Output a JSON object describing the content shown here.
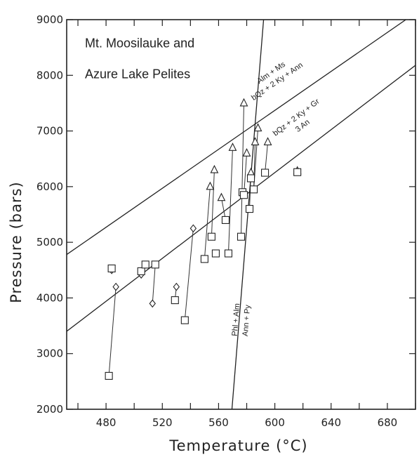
{
  "chart_data": {
    "type": "scatter",
    "title": "",
    "xlabel": "Temperature (°C)",
    "ylabel": "Pressure (bars)",
    "xlim": [
      452,
      700
    ],
    "ylim": [
      2000,
      9000
    ],
    "x_ticks": [
      480,
      520,
      560,
      600,
      640,
      680
    ],
    "y_ticks": [
      2000,
      3000,
      4000,
      5000,
      6000,
      7000,
      8000,
      9000
    ],
    "grid": false,
    "annotations": [
      {
        "text": "Mt. Moosilauke and",
        "x": 462,
        "y": 8500
      },
      {
        "text": "Azure Lake Pelites",
        "x": 462,
        "y": 7950
      }
    ],
    "reaction_lines": [
      {
        "name": "Alm + Ms = bQz + 2 Ky + Ann",
        "label_top": "Alm + Ms",
        "label_bottom": "bQz + 2 Ky + Ann",
        "x": [
          452,
          700
        ],
        "y": [
          4780,
          9120
        ],
        "label_at": {
          "x": 600,
          "y": 7950
        }
      },
      {
        "name": "bQz + 2 Ky + Gr = 3 An",
        "label_top": "bQz + 2 Ky + Gr",
        "label_bottom": "3 An",
        "x": [
          452,
          700
        ],
        "y": [
          3400,
          8180
        ],
        "label_at": {
          "x": 618,
          "y": 7150
        }
      },
      {
        "name": "Phl + Alm = Ann + Py",
        "label_top": "Phl   + Alm",
        "label_bottom": "Ann  + Py",
        "x": [
          569.5,
          592
        ],
        "y": [
          2000,
          9000
        ],
        "label_at": {
          "x": 577,
          "y": 3600
        }
      }
    ],
    "series": [
      {
        "marker": "triangle",
        "points": [
          [
            554,
            6000
          ],
          [
            557,
            6300
          ],
          [
            562,
            5800
          ],
          [
            570,
            6700
          ],
          [
            578,
            7500
          ],
          [
            580,
            6600
          ],
          [
            583,
            6250
          ],
          [
            586,
            6800
          ],
          [
            588,
            7050
          ],
          [
            595,
            6800
          ],
          [
            616,
            6280
          ]
        ]
      },
      {
        "marker": "diamond",
        "points": [
          [
            484,
            4500
          ],
          [
            487,
            4200
          ],
          [
            505,
            4420
          ],
          [
            513,
            3900
          ],
          [
            530,
            4200
          ],
          [
            542,
            5250
          ]
        ]
      },
      {
        "marker": "square",
        "points": [
          [
            482,
            2600
          ],
          [
            484,
            4530
          ],
          [
            505,
            4480
          ],
          [
            508,
            4600
          ],
          [
            515,
            4600
          ],
          [
            529,
            3960
          ],
          [
            536,
            3600
          ],
          [
            550,
            4700
          ],
          [
            555,
            5100
          ],
          [
            558,
            4800
          ],
          [
            565,
            5400
          ],
          [
            567,
            4800
          ],
          [
            576,
            5100
          ],
          [
            577,
            5900
          ],
          [
            578,
            5850
          ],
          [
            582,
            5600
          ],
          [
            583,
            6150
          ],
          [
            585,
            5950
          ],
          [
            593,
            6250
          ],
          [
            616,
            6260
          ]
        ]
      }
    ],
    "tie_lines": [
      [
        [
          482,
          2600
        ],
        [
          487,
          4200
        ]
      ],
      [
        [
          529,
          3960
        ],
        [
          530,
          4200
        ]
      ],
      [
        [
          536,
          3600
        ],
        [
          542,
          5250
        ]
      ],
      [
        [
          513,
          3900
        ],
        [
          515,
          4600
        ]
      ],
      [
        [
          550,
          4700
        ],
        [
          554,
          6000
        ]
      ],
      [
        [
          555,
          5100
        ],
        [
          557,
          6300
        ]
      ],
      [
        [
          565,
          5400
        ],
        [
          562,
          5800
        ]
      ],
      [
        [
          567,
          4800
        ],
        [
          570,
          6700
        ]
      ],
      [
        [
          576,
          5100
        ],
        [
          578,
          7500
        ]
      ],
      [
        [
          578,
          5850
        ],
        [
          580,
          6600
        ]
      ],
      [
        [
          582,
          5600
        ],
        [
          583,
          6250
        ]
      ],
      [
        [
          585,
          5950
        ],
        [
          586,
          6800
        ]
      ],
      [
        [
          585,
          5950
        ],
        [
          588,
          7050
        ]
      ],
      [
        [
          593,
          6250
        ],
        [
          595,
          6800
        ]
      ],
      [
        [
          505,
          4420
        ],
        [
          508,
          4600
        ]
      ]
    ]
  }
}
